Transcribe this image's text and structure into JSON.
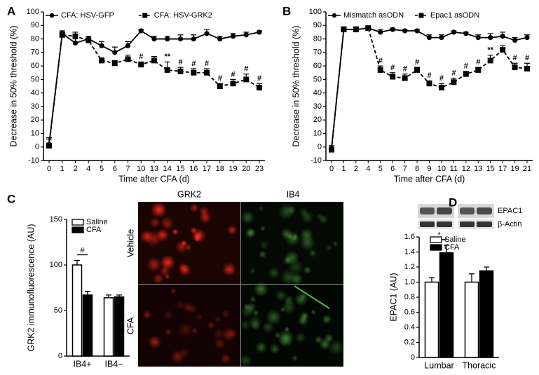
{
  "chart_data": [
    {
      "panel": "A",
      "type": "line",
      "y_label": "Decrease in 50% threshold (%)",
      "x_label": "Time after CFA (d)",
      "categories": [
        "0",
        "1",
        "2",
        "4",
        "5",
        "6",
        "7",
        "10",
        "13",
        "14",
        "15",
        "16",
        "17",
        "18",
        "19",
        "20",
        "23"
      ],
      "ylim": [
        -10,
        100
      ],
      "yticks": [
        -10,
        0,
        10,
        20,
        30,
        40,
        50,
        60,
        70,
        80,
        90,
        100
      ],
      "series": [
        {
          "name": "CFA: HSV-GFP",
          "color": "#000000",
          "marker": "circle",
          "dashed": false,
          "values": [
            2,
            84,
            77,
            80,
            75,
            70,
            75,
            86,
            80,
            80,
            80,
            80,
            84,
            80,
            82,
            83,
            85
          ],
          "errors": [
            5,
            2,
            3,
            2,
            3,
            4,
            3,
            1,
            2,
            2,
            3,
            3,
            3,
            2,
            2,
            2,
            1
          ]
        },
        {
          "name": "CFA: HSV-GRK2",
          "color": "#000000",
          "marker": "square",
          "dashed": true,
          "values": [
            1,
            83,
            82,
            79,
            64,
            62,
            65,
            61,
            64,
            57,
            56,
            55,
            55,
            45,
            47,
            50,
            44
          ],
          "errors": [
            5,
            2,
            3,
            3,
            2,
            2,
            3,
            2,
            3,
            6,
            3,
            3,
            3,
            2,
            3,
            4,
            3
          ]
        }
      ],
      "significance": [
        null,
        null,
        null,
        null,
        null,
        null,
        null,
        "#",
        null,
        "**",
        "#",
        "#",
        "#",
        "#",
        "#",
        "#",
        "#"
      ]
    },
    {
      "panel": "B",
      "type": "line",
      "y_label": "Decrease in 50% threshold (%)",
      "x_label": "Time after CFA (d)",
      "categories": [
        "0",
        "1",
        "2",
        "4",
        "5",
        "6",
        "7",
        "8",
        "9",
        "10",
        "11",
        "12",
        "13",
        "15",
        "17",
        "19",
        "21"
      ],
      "ylim": [
        -10,
        100
      ],
      "yticks": [
        -10,
        0,
        10,
        20,
        30,
        40,
        50,
        60,
        70,
        80,
        90,
        100
      ],
      "series": [
        {
          "name": "Mismatch asODN",
          "color": "#000000",
          "marker": "circle",
          "dashed": false,
          "values": [
            -1,
            87,
            87,
            88,
            85,
            87,
            86,
            86,
            81,
            81,
            85,
            84,
            81,
            81,
            82,
            79,
            81
          ],
          "errors": [
            2,
            1,
            1,
            1,
            2,
            1,
            1,
            1,
            2,
            2,
            1,
            1,
            2,
            3,
            3,
            2,
            2
          ]
        },
        {
          "name": "Epac1 asODN",
          "color": "#000000",
          "marker": "square",
          "dashed": true,
          "values": [
            -2,
            87,
            87,
            88,
            57,
            52,
            51,
            57,
            47,
            44,
            48,
            54,
            57,
            64,
            72,
            59,
            58
          ],
          "errors": [
            2,
            2,
            2,
            1,
            3,
            3,
            3,
            2,
            2,
            3,
            3,
            2,
            2,
            4,
            3,
            3,
            4
          ]
        }
      ],
      "significance": [
        null,
        null,
        null,
        null,
        "#",
        "#",
        "#",
        "#",
        "#",
        "#",
        "#",
        "#",
        "#",
        "**",
        null,
        "#",
        "#"
      ]
    },
    {
      "panel": "C",
      "type": "bar",
      "y_label": "GRK2 immunofluorescence (AU)",
      "categories": [
        "IB4+",
        "IB4−"
      ],
      "ylim": [
        0,
        150
      ],
      "yticks": [
        0,
        50,
        100,
        150
      ],
      "series": [
        {
          "name": "Saline",
          "color": "#ffffff",
          "values": [
            100,
            64
          ],
          "errors": [
            5,
            3
          ]
        },
        {
          "name": "CFA",
          "color": "#000000",
          "values": [
            67,
            65
          ],
          "errors": [
            4,
            2
          ]
        }
      ],
      "significance": [
        "#",
        null
      ]
    },
    {
      "panel": "D",
      "type": "bar",
      "y_label": "EPAC1 (AU)",
      "blot_labels": [
        "EPAC1",
        "β-Actin"
      ],
      "categories": [
        "Lumbar",
        "Thoracic"
      ],
      "ylim": [
        0,
        1.6
      ],
      "yticks": [
        0,
        0.2,
        0.4,
        0.6,
        0.8,
        {
          "value": 1,
          "label": "1.0"
        },
        1.2,
        1.4,
        1.6
      ],
      "series": [
        {
          "name": "Saline",
          "color": "#ffffff",
          "values": [
            1.0,
            1.0
          ],
          "errors": [
            0.06,
            0.11
          ]
        },
        {
          "name": "CFA",
          "color": "#000000",
          "values": [
            1.39,
            1.15
          ],
          "errors": [
            0.1,
            0.05
          ]
        }
      ],
      "significance": [
        "*",
        null
      ]
    }
  ],
  "micrograph": {
    "columns": [
      "GRK2",
      "IB4"
    ],
    "rows": [
      "Vehicle",
      "CFA"
    ]
  }
}
